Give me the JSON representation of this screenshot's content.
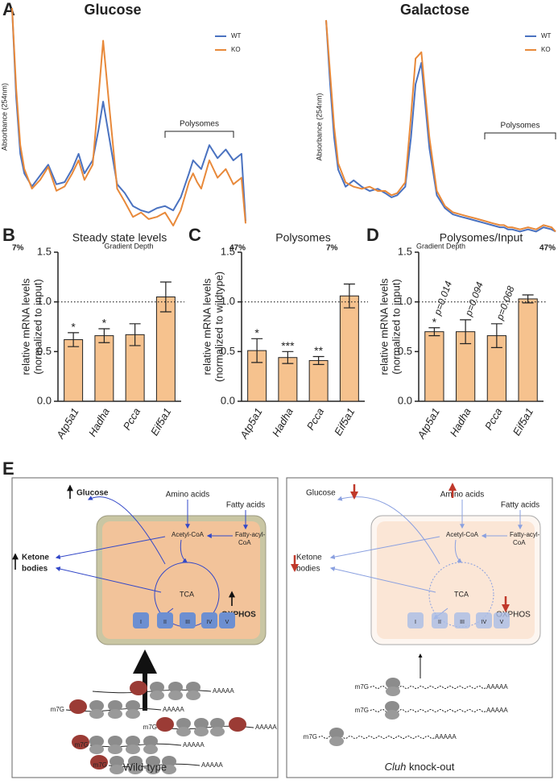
{
  "panels": [
    "A",
    "B",
    "C",
    "D",
    "E"
  ],
  "chart_data": [
    {
      "type": "line",
      "title": "Glucose",
      "ylabel": "Absorbance (254nm)",
      "xlabel": "Gradient Depth",
      "annotation": "Polysomes",
      "legend": "upper right",
      "x": [
        7.0,
        7.7,
        8.4,
        9.1,
        10.4,
        11.8,
        13.2,
        14.6,
        16.0,
        17.3,
        18.4,
        19.4,
        20.8,
        21.8,
        22.6,
        23.6,
        25.0,
        26.3,
        27.7,
        29.1,
        30.4,
        31.8,
        33.2,
        34.6,
        35.9,
        37.3,
        38.0,
        38.7,
        39.4,
        40.8,
        42.2,
        43.6,
        44.9,
        46.3,
        47.0
      ],
      "xlim": [
        7,
        47
      ],
      "xticks": [
        {
          "value": 7,
          "label": "7%"
        },
        {
          "value": 47,
          "label": "47%"
        }
      ],
      "ylim": [
        0,
        100
      ],
      "series": [
        {
          "name": "WT",
          "color": "#4a72c0",
          "values": [
            100,
            59,
            33,
            24,
            18,
            23,
            28,
            19,
            20,
            26,
            33,
            24,
            30,
            44,
            57,
            41,
            19,
            15,
            9,
            7,
            6,
            8,
            9,
            7,
            13,
            24,
            30,
            28,
            26,
            37,
            31,
            35,
            30,
            33,
            2
          ]
        },
        {
          "name": "KO",
          "color": "#e8893a",
          "values": [
            100,
            63,
            37,
            26,
            17,
            21,
            27,
            16,
            18,
            24,
            30,
            21,
            28,
            59,
            85,
            56,
            17,
            11,
            4,
            6,
            3,
            4,
            6,
            0,
            7,
            20,
            24,
            20,
            17,
            30,
            22,
            26,
            19,
            22,
            1
          ]
        }
      ]
    },
    {
      "type": "line",
      "title": "Galactose",
      "ylabel": "Absorbance (254nm)",
      "xlabel": "Gradient Depth",
      "annotation": "Polysomes",
      "legend": "upper right",
      "x": [
        7.0,
        7.7,
        8.4,
        9.1,
        10.4,
        11.8,
        13.2,
        14.6,
        16.0,
        17.3,
        18.4,
        19.4,
        20.8,
        21.8,
        22.6,
        23.6,
        25.0,
        26.3,
        27.7,
        29.1,
        30.4,
        31.8,
        33.2,
        34.6,
        35.9,
        37.3,
        38.0,
        38.7,
        39.4,
        40.8,
        42.2,
        43.6,
        44.9,
        46.3,
        47.0
      ],
      "xlim": [
        7,
        47
      ],
      "xticks": [
        {
          "value": 7,
          "label": "7%"
        },
        {
          "value": 47,
          "label": "47%"
        }
      ],
      "ylim": [
        0,
        100
      ],
      "series": [
        {
          "name": "WT",
          "color": "#4a72c0",
          "values": [
            100,
            70,
            45,
            30,
            22,
            25,
            22,
            20,
            21,
            19,
            17,
            18,
            22,
            45,
            70,
            80,
            40,
            18,
            12,
            9,
            8,
            7,
            6,
            5,
            4,
            3,
            3,
            2,
            2,
            1,
            2,
            1,
            3,
            2,
            1
          ]
        },
        {
          "name": "KO",
          "color": "#e8893a",
          "values": [
            100,
            75,
            50,
            33,
            24,
            22,
            21,
            22,
            20,
            20,
            18,
            19,
            24,
            55,
            82,
            85,
            45,
            20,
            13,
            10,
            9,
            8,
            7,
            6,
            5,
            4,
            4,
            3,
            3,
            2,
            3,
            2,
            4,
            3,
            1
          ]
        }
      ]
    },
    {
      "type": "bar",
      "title": "Steady state levels",
      "ylabel": [
        "relative mRNA levels",
        "(normalized to input)"
      ],
      "categories": [
        "Atp5a1",
        "Hadha",
        "Pcca",
        "Eif5a1"
      ],
      "values": [
        0.62,
        0.66,
        0.67,
        1.05
      ],
      "errors": [
        0.07,
        0.07,
        0.11,
        0.15
      ],
      "annotations": [
        "*",
        "*",
        null,
        null
      ],
      "reference_line": 1.0,
      "color": "#f6c28e",
      "ylim": [
        0,
        1.5
      ],
      "yticks": [
        {
          "value": 0,
          "label": "0.0"
        },
        {
          "value": 0.5,
          "label": "0.5"
        },
        {
          "value": 1,
          "label": "1.0"
        },
        {
          "value": 1.5,
          "label": "1.5"
        }
      ]
    },
    {
      "type": "bar",
      "title": "Polysomes",
      "ylabel": [
        "relative mRNA levels",
        "(normalized to wildtype)"
      ],
      "categories": [
        "Atp5a1",
        "Hadha",
        "Pcca",
        "Eif5a1"
      ],
      "values": [
        0.51,
        0.44,
        0.41,
        1.06
      ],
      "errors": [
        0.12,
        0.06,
        0.04,
        0.12
      ],
      "annotations": [
        "*",
        "***",
        "**",
        null
      ],
      "reference_line": 1.0,
      "color": "#f6c28e",
      "ylim": [
        0,
        1.5
      ],
      "yticks": [
        {
          "value": 0,
          "label": "0.0"
        },
        {
          "value": 0.5,
          "label": "0.5"
        },
        {
          "value": 1,
          "label": "1.0"
        },
        {
          "value": 1.5,
          "label": "1.5"
        }
      ]
    },
    {
      "type": "bar",
      "title": "Polysomes/Input",
      "ylabel": [
        "relative mRNA levels",
        "(normalized to input)"
      ],
      "categories": [
        "Atp5a1",
        "Hadha",
        "Pcca",
        "Eif5a1"
      ],
      "values": [
        0.7,
        0.7,
        0.66,
        1.03
      ],
      "errors": [
        0.04,
        0.12,
        0.12,
        0.04
      ],
      "annotations": [
        "*",
        null,
        null,
        null
      ],
      "p_values": [
        "p=0.014",
        "p=0.094",
        "p=0.068",
        null
      ],
      "reference_line": 1.0,
      "color": "#f6c28e",
      "ylim": [
        0,
        1.5
      ],
      "yticks": [
        {
          "value": 0,
          "label": "0.0"
        },
        {
          "value": 0.5,
          "label": "0.5"
        },
        {
          "value": 1,
          "label": "1.0"
        },
        {
          "value": 1.5,
          "label": "1.5"
        }
      ]
    }
  ],
  "diagram": {
    "wild_type": {
      "caption": "Wild-type",
      "glucose": "Glucose",
      "amino_acids": "Amino acids",
      "fatty_acids": "Fatty acids",
      "ketone": [
        "Ketone",
        "bodies"
      ],
      "acetyl_coa": "Acetyl-CoA",
      "fatty_acyl_coa": [
        "Fatty-acyl-",
        "CoA"
      ],
      "tca": "TCA",
      "oxphos": "OXPHOS",
      "complexes": [
        "I",
        "II",
        "III",
        "IV",
        "V"
      ],
      "mrnas": [
        {
          "tail": "AAAAA"
        },
        {
          "cap": "m7G",
          "tail": "AAAAA"
        },
        {
          "cap": "m7G",
          "tail": "AAAAA"
        },
        {
          "cap": "m7G",
          "tail": "AAAAA"
        },
        {
          "cap": "m7G",
          "tail": "AAAAA"
        }
      ]
    },
    "knock_out": {
      "caption": {
        "gene": "Cluh",
        "text": "knock-out"
      },
      "glucose": "Glucose",
      "amino_acids": "Amino acids",
      "fatty_acids": "Fatty acids",
      "ketone": [
        "Ketone",
        "bodies"
      ],
      "acetyl_coa": "Acetyl-CoA",
      "fatty_acyl_coa": [
        "Fatty-acyl-",
        "CoA"
      ],
      "tca": "TCA",
      "oxphos": "OXPHOS",
      "complexes": [
        "I",
        "II",
        "III",
        "IV",
        "V"
      ],
      "mrnas": [
        {
          "cap": "m7G",
          "tail": "AAAAA"
        },
        {
          "cap": "m7G",
          "tail": "AAAAA"
        },
        {
          "cap": "m7G",
          "tail": "AAAAA"
        }
      ]
    }
  }
}
